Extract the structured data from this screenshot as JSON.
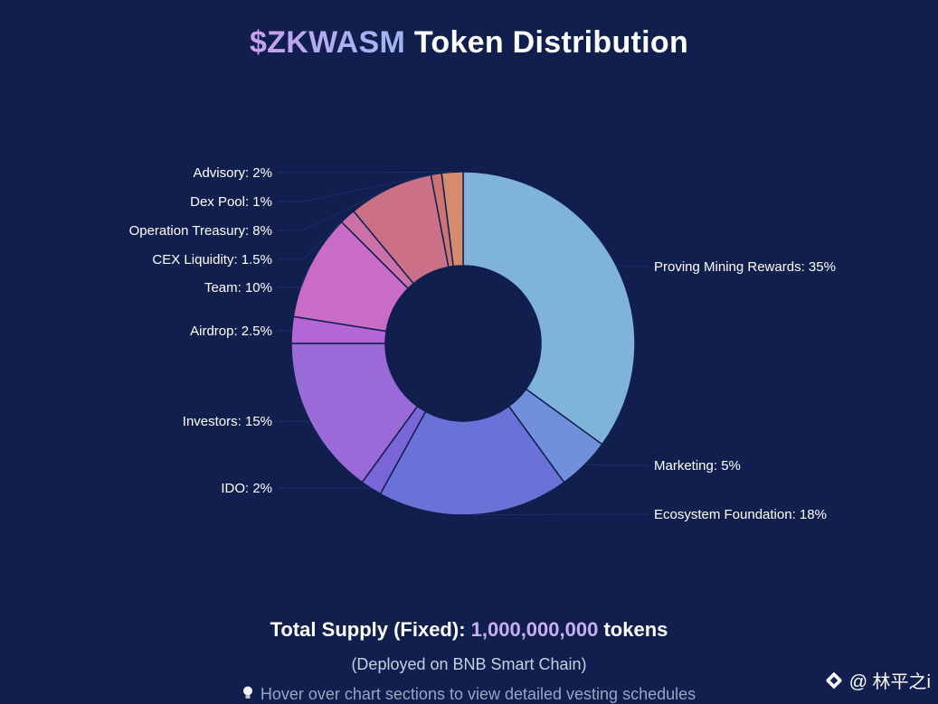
{
  "header": {
    "token": "$ZKWASM",
    "title_rest": " Token Distribution"
  },
  "chart_data": {
    "type": "pie",
    "donut": true,
    "title": "$ZKWASM Token Distribution",
    "slices": [
      {
        "label": "Proving Mining Rewards: 35%",
        "name": "Proving Mining Rewards",
        "value": 35,
        "color": "#7fb3d9"
      },
      {
        "label": "Marketing: 5%",
        "name": "Marketing",
        "value": 5,
        "color": "#7090dc"
      },
      {
        "label": "Ecosystem Foundation: 18%",
        "name": "Ecosystem Foundation",
        "value": 18,
        "color": "#6b72d7"
      },
      {
        "label": "IDO: 2%",
        "name": "IDO",
        "value": 2,
        "color": "#7a66d6"
      },
      {
        "label": "Investors: 15%",
        "name": "Investors",
        "value": 15,
        "color": "#9a6ad8"
      },
      {
        "label": "Airdrop: 2.5%",
        "name": "Airdrop",
        "value": 2.5,
        "color": "#b466d6"
      },
      {
        "label": "Team: 10%",
        "name": "Team",
        "value": 10,
        "color": "#c86cc8"
      },
      {
        "label": "CEX Liquidity: 1.5%",
        "name": "CEX Liquidity",
        "value": 1.5,
        "color": "#cc70a8"
      },
      {
        "label": "Operation Treasury: 8%",
        "name": "Operation Treasury",
        "value": 8,
        "color": "#cc7088"
      },
      {
        "label": "Dex Pool: 1%",
        "name": "Dex Pool",
        "value": 1,
        "color": "#cc7474"
      },
      {
        "label": "Advisory: 2%",
        "name": "Advisory",
        "value": 2,
        "color": "#d68c6c"
      }
    ]
  },
  "supply": {
    "prefix": "Total Supply (Fixed): ",
    "amount": "1,000,000,000",
    "suffix": " tokens"
  },
  "deployed": "(Deployed on BNB Smart Chain)",
  "hint": "Hover over chart sections to view detailed vesting schedules",
  "watermark": "@ 林平之i"
}
